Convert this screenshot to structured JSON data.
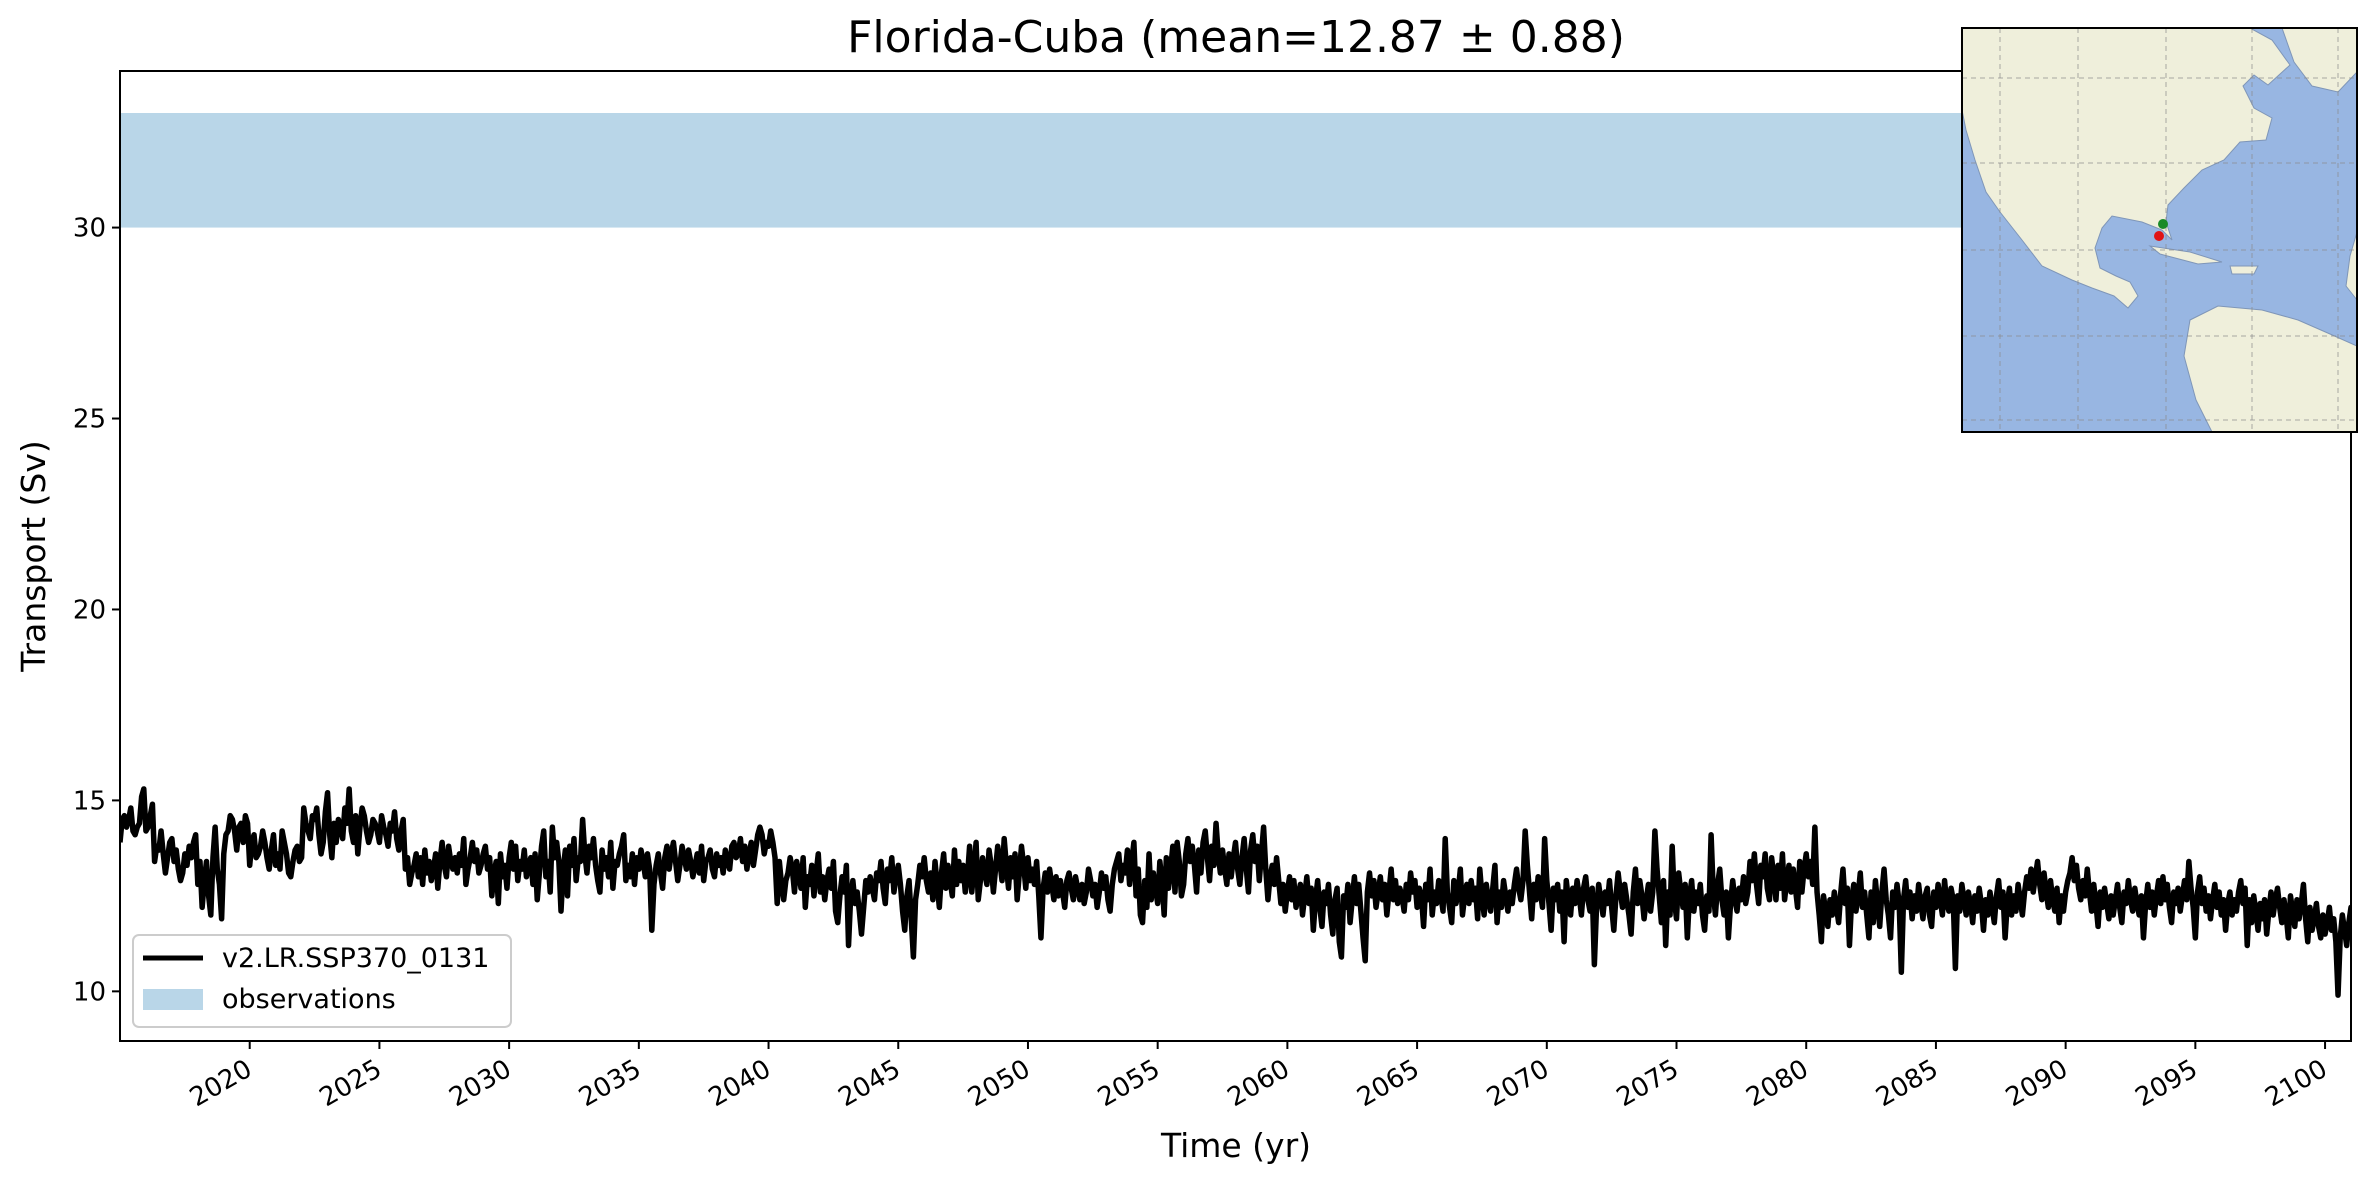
{
  "chart_data": {
    "type": "line",
    "title": "Florida-Cuba (mean=12.87 ± 0.88)",
    "xlabel": "Time (yr)",
    "ylabel": "Transport (Sv)",
    "xlim": [
      2015.0,
      2101.0
    ],
    "ylim": [
      8.7,
      34.1
    ],
    "x_ticks": [
      2020,
      2025,
      2030,
      2035,
      2040,
      2045,
      2050,
      2055,
      2060,
      2065,
      2070,
      2075,
      2080,
      2085,
      2090,
      2095,
      2100
    ],
    "y_ticks": [
      10,
      15,
      20,
      25,
      30
    ],
    "grid": false,
    "legend_position": "lower-left",
    "observations_band": {
      "name": "observations",
      "ymin": 30.0,
      "ymax": 33.0,
      "color": "#b9d6e8"
    },
    "series": [
      {
        "name": "v2.LR.SSP370_0131",
        "color": "#000000",
        "x_start": 2015.0,
        "x_step": 0.0833333,
        "values": [
          13.9,
          14.5,
          14.6,
          14.3,
          14.5,
          14.8,
          14.2,
          14.1,
          14.3,
          14.4,
          15.1,
          15.3,
          14.2,
          14.3,
          14.6,
          14.9,
          13.4,
          13.8,
          13.7,
          14.2,
          13.6,
          13.1,
          13.5,
          13.9,
          14.0,
          13.4,
          13.7,
          13.2,
          12.9,
          13.1,
          13.6,
          13.3,
          13.8,
          13.5,
          13.9,
          14.1,
          12.8,
          13.4,
          12.2,
          12.9,
          13.4,
          12.5,
          12.0,
          13.5,
          14.3,
          13.2,
          12.8,
          11.9,
          13.6,
          14.1,
          14.2,
          14.6,
          14.5,
          14.2,
          13.7,
          14.3,
          14.4,
          13.9,
          14.6,
          14.4,
          13.3,
          13.9,
          14.1,
          13.5,
          13.6,
          13.8,
          14.2,
          13.9,
          13.5,
          13.2,
          13.7,
          14.1,
          13.3,
          13.6,
          13.2,
          14.2,
          13.9,
          13.6,
          13.1,
          13.0,
          13.4,
          13.7,
          13.8,
          13.4,
          13.5,
          14.8,
          14.4,
          14.2,
          14.0,
          14.6,
          14.5,
          14.8,
          14.1,
          13.6,
          13.9,
          14.7,
          15.2,
          14.1,
          13.5,
          14.4,
          13.9,
          14.5,
          14.3,
          14.0,
          14.8,
          14.4,
          15.3,
          14.2,
          13.9,
          14.6,
          13.6,
          14.3,
          14.8,
          14.6,
          14.2,
          13.9,
          14.1,
          14.5,
          14.4,
          14.2,
          13.9,
          14.6,
          14.3,
          14.1,
          13.8,
          14.4,
          14.2,
          14.7,
          14.0,
          13.7,
          14.2,
          14.5,
          13.2,
          13.5,
          12.8,
          13.1,
          13.3,
          13.6,
          13.0,
          13.5,
          12.8,
          13.7,
          13.1,
          13.4,
          12.9,
          13.2,
          13.6,
          12.7,
          13.4,
          13.9,
          13.3,
          13.0,
          13.8,
          13.4,
          13.2,
          13.5,
          13.1,
          13.6,
          13.3,
          14.0,
          12.8,
          13.2,
          13.5,
          13.9,
          13.4,
          13.7,
          13.1,
          13.3,
          13.6,
          13.8,
          13.2,
          13.5,
          12.5,
          13.1,
          13.4,
          12.3,
          13.6,
          13.0,
          13.3,
          12.7,
          13.5,
          13.9,
          13.2,
          13.8,
          12.9,
          13.4,
          13.2,
          13.7,
          13.0,
          13.3,
          13.5,
          12.8,
          13.6,
          12.4,
          13.1,
          13.8,
          14.2,
          13.0,
          13.4,
          12.6,
          14.3,
          13.5,
          13.9,
          13.4,
          12.1,
          13.2,
          13.7,
          12.5,
          13.8,
          13.3,
          14.0,
          12.9,
          13.5,
          13.4,
          14.5,
          13.6,
          13.1,
          13.8,
          13.5,
          14.0,
          13.3,
          12.9,
          12.6,
          13.7,
          13.2,
          13.5,
          13.0,
          13.9,
          12.7,
          13.4,
          13.3,
          13.6,
          13.8,
          14.1,
          12.9,
          13.3,
          13.0,
          13.6,
          12.8,
          13.5,
          13.2,
          13.7,
          13.4,
          13.0,
          13.6,
          13.2,
          11.6,
          12.8,
          13.3,
          13.6,
          13.1,
          12.7,
          13.5,
          13.8,
          13.2,
          13.6,
          13.9,
          13.4,
          12.9,
          13.3,
          13.8,
          13.5,
          13.2,
          13.7,
          13.4,
          13.0,
          13.3,
          13.6,
          13.1,
          13.8,
          12.9,
          13.4,
          13.5,
          13.7,
          13.2,
          13.0,
          13.6,
          13.3,
          13.5,
          13.1,
          13.7,
          13.4,
          13.2,
          13.8,
          13.9,
          13.5,
          13.6,
          14.0,
          13.4,
          13.8,
          13.2,
          13.6,
          13.9,
          13.3,
          13.7,
          14.1,
          14.3,
          14.1,
          13.6,
          13.9,
          13.8,
          14.2,
          13.9,
          13.5,
          12.3,
          13.4,
          12.8,
          12.4,
          12.9,
          13.1,
          13.5,
          13.2,
          12.6,
          13.4,
          13.1,
          12.7,
          13.5,
          12.2,
          13.0,
          12.8,
          13.3,
          12.5,
          13.1,
          13.6,
          12.6,
          13.0,
          12.4,
          12.9,
          13.2,
          12.7,
          13.4,
          12.1,
          11.8,
          12.5,
          13.0,
          12.6,
          13.3,
          11.2,
          12.5,
          12.9,
          12.3,
          12.6,
          12.1,
          11.5,
          12.2,
          12.9,
          12.6,
          13.0,
          12.7,
          12.4,
          13.1,
          12.9,
          13.4,
          12.7,
          12.3,
          13.2,
          12.9,
          13.5,
          12.6,
          13.0,
          13.3,
          12.8,
          12.1,
          11.6,
          12.5,
          12.9,
          11.9,
          10.9,
          12.4,
          12.8,
          13.3,
          13.0,
          13.5,
          12.9,
          12.6,
          13.1,
          12.4,
          13.4,
          12.8,
          12.2,
          13.1,
          13.6,
          12.7,
          13.3,
          12.9,
          12.5,
          13.7,
          12.8,
          13.4,
          12.9,
          13.3,
          12.6,
          13.0,
          13.8,
          12.6,
          13.2,
          13.9,
          12.4,
          12.9,
          13.5,
          13.1,
          12.8,
          13.7,
          13.3,
          12.6,
          13.2,
          13.8,
          13.4,
          12.9,
          14.0,
          13.3,
          12.7,
          13.5,
          13.0,
          13.6,
          12.4,
          13.1,
          13.8,
          13.3,
          12.7,
          13.5,
          12.9,
          13.2,
          12.8,
          13.4,
          12.5,
          11.4,
          12.7,
          13.1,
          12.6,
          13.2,
          12.8,
          12.4,
          13.0,
          12.5,
          12.9,
          12.6,
          12.2,
          12.9,
          13.1,
          12.7,
          12.4,
          13.0,
          12.7,
          12.4,
          12.8,
          12.3,
          12.6,
          13.2,
          12.9,
          12.5,
          12.8,
          12.2,
          12.6,
          13.1,
          12.7,
          13.0,
          12.4,
          12.1,
          12.8,
          13.2,
          13.4,
          13.6,
          12.9,
          13.3,
          13.1,
          13.7,
          12.8,
          13.4,
          13.9,
          12.5,
          13.2,
          12.0,
          11.8,
          12.9,
          12.2,
          13.6,
          12.4,
          13.1,
          12.7,
          12.3,
          13.4,
          12.9,
          12.0,
          13.5,
          12.7,
          13.2,
          13.8,
          12.6,
          13.9,
          13.4,
          12.5,
          12.8,
          13.6,
          14.0,
          13.4,
          13.8,
          13.3,
          12.6,
          13.7,
          13.1,
          13.9,
          14.2,
          13.5,
          12.9,
          13.8,
          13.3,
          14.4,
          13.6,
          13.1,
          13.7,
          13.2,
          12.8,
          13.6,
          13.0,
          13.5,
          13.9,
          13.2,
          12.8,
          13.5,
          14.0,
          13.2,
          12.6,
          13.7,
          14.1,
          13.4,
          13.8,
          12.9,
          13.6,
          14.3,
          13.2,
          12.4,
          13.0,
          13.3,
          12.8,
          13.5,
          12.9,
          12.3,
          12.8,
          12.1,
          12.6,
          13.0,
          12.4,
          12.9,
          12.2,
          12.5,
          12.8,
          12.0,
          12.5,
          13.0,
          12.3,
          12.7,
          11.6,
          12.4,
          12.9,
          12.2,
          11.7,
          12.6,
          12.3,
          12.8,
          12.0,
          11.5,
          12.4,
          12.7,
          11.3,
          10.9,
          12.5,
          12.2,
          12.8,
          11.8,
          12.4,
          13.0,
          12.3,
          12.8,
          12.1,
          11.4,
          10.8,
          12.6,
          13.1,
          12.5,
          12.9,
          12.2,
          12.6,
          13.0,
          12.4,
          12.8,
          12.0,
          12.6,
          13.2,
          12.4,
          12.9,
          12.3,
          12.7,
          12.5,
          12.1,
          12.8,
          12.4,
          13.1,
          12.6,
          12.9,
          12.2,
          12.7,
          12.5,
          11.7,
          12.8,
          12.4,
          13.2,
          12.0,
          12.6,
          12.3,
          12.9,
          12.5,
          12.1,
          14.0,
          12.6,
          12.2,
          11.8,
          12.9,
          12.3,
          12.6,
          13.2,
          12.0,
          12.5,
          12.8,
          12.3,
          12.9,
          12.4,
          12.7,
          11.9,
          13.2,
          12.5,
          12.0,
          12.8,
          12.4,
          12.1,
          12.7,
          13.3,
          11.8,
          12.6,
          12.2,
          12.9,
          12.5,
          12.1,
          12.6,
          12.3,
          12.8,
          13.2,
          12.7,
          12.4,
          12.9,
          14.2,
          13.3,
          12.6,
          11.9,
          12.8,
          12.4,
          13.0,
          12.6,
          12.2,
          14.0,
          12.9,
          12.3,
          11.6,
          12.7,
          12.4,
          12.8,
          12.1,
          12.6,
          11.3,
          12.9,
          12.4,
          12.0,
          12.7,
          12.3,
          12.9,
          12.5,
          12.0,
          12.7,
          13.0,
          12.4,
          12.1,
          12.7,
          10.7,
          12.2,
          12.8,
          12.4,
          12.0,
          12.6,
          12.3,
          12.9,
          12.2,
          11.6,
          12.5,
          13.1,
          12.6,
          12.2,
          12.8,
          12.4,
          12.0,
          11.5,
          12.6,
          13.2,
          12.3,
          12.9,
          12.5,
          11.9,
          12.4,
          12.8,
          12.1,
          12.6,
          14.2,
          13.2,
          12.5,
          11.8,
          12.9,
          11.2,
          12.6,
          12.0,
          13.8,
          12.4,
          11.9,
          13.1,
          12.6,
          12.2,
          12.8,
          11.4,
          12.5,
          12.9,
          12.1,
          12.6,
          12.3,
          12.8,
          12.0,
          11.6,
          12.5,
          12.1,
          14.1,
          12.6,
          12.0,
          12.8,
          13.2,
          12.4,
          12.0,
          12.6,
          11.4,
          12.3,
          12.9,
          12.4,
          12.1,
          12.7,
          12.4,
          13.0,
          12.3,
          12.6,
          13.4,
          12.9,
          13.6,
          12.8,
          12.3,
          13.3,
          13.0,
          13.6,
          12.7,
          12.4,
          13.5,
          13.0,
          12.4,
          13.3,
          12.7,
          13.6,
          12.4,
          12.9,
          13.3,
          12.6,
          13.2,
          12.7,
          12.2,
          13.4,
          12.6,
          13.2,
          13.6,
          13.0,
          13.4,
          12.8,
          14.3,
          12.6,
          12.0,
          11.3,
          12.5,
          12.1,
          11.7,
          12.4,
          12.0,
          12.6,
          12.2,
          11.8,
          12.6,
          13.2,
          12.3,
          12.7,
          11.2,
          12.4,
          12.8,
          12.1,
          12.5,
          13.1,
          12.2,
          12.6,
          12.0,
          11.4,
          12.6,
          11.8,
          12.9,
          12.3,
          11.7,
          12.6,
          13.2,
          12.4,
          12.0,
          11.4,
          12.6,
          12.2,
          12.8,
          12.3,
          10.5,
          12.4,
          12.9,
          12.2,
          12.6,
          11.9,
          12.5,
          12.1,
          12.8,
          12.3,
          11.9,
          12.5,
          12.7,
          12.0,
          11.7,
          12.6,
          12.2,
          12.8,
          12.4,
          12.0,
          12.9,
          12.3,
          12.1,
          12.7,
          12.4,
          10.6,
          12.5,
          12.1,
          12.8,
          12.4,
          12.0,
          12.6,
          12.3,
          11.8,
          12.5,
          12.1,
          12.7,
          12.3,
          11.6,
          12.4,
          12.0,
          12.6,
          12.2,
          11.8,
          12.5,
          12.9,
          12.2,
          12.6,
          11.4,
          12.3,
          12.7,
          12.0,
          12.5,
          12.1,
          12.8,
          12.4,
          12.0,
          12.6,
          13.0,
          12.7,
          13.2,
          12.6,
          13.0,
          13.4,
          12.8,
          12.4,
          13.1,
          12.6,
          12.2,
          12.9,
          12.4,
          12.1,
          12.7,
          11.8,
          12.5,
          12.1,
          12.6,
          12.9,
          13.1,
          13.5,
          12.9,
          13.3,
          12.7,
          12.4,
          12.9,
          12.5,
          13.2,
          12.6,
          12.1,
          12.8,
          12.3,
          11.7,
          12.6,
          12.2,
          12.7,
          12.3,
          11.9,
          12.5,
          12.0,
          12.4,
          12.8,
          12.2,
          11.8,
          12.6,
          12.3,
          12.9,
          12.4,
          12.1,
          12.7,
          12.3,
          12.0,
          12.5,
          11.4,
          12.3,
          12.8,
          12.2,
          12.6,
          12.0,
          12.5,
          12.9,
          12.3,
          13.0,
          12.4,
          12.8,
          12.2,
          11.8,
          12.6,
          12.3,
          12.7,
          12.1,
          12.5,
          12.9,
          12.4,
          13.4,
          12.7,
          12.2,
          11.4,
          12.6,
          13.0,
          12.3,
          12.7,
          12.1,
          12.5,
          11.9,
          12.4,
          12.8,
          12.2,
          12.6,
          12.0,
          12.4,
          11.6,
          12.3,
          12.6,
          12.0,
          12.4,
          12.1,
          12.6,
          12.9,
          12.3,
          12.7,
          11.2,
          12.4,
          11.8,
          12.5,
          12.1,
          11.6,
          12.3,
          11.9,
          12.4,
          11.5,
          12.1,
          12.6,
          12.0,
          12.4,
          12.7,
          12.2,
          11.8,
          12.4,
          12.0,
          11.4,
          12.5,
          12.1,
          11.7,
          12.4,
          11.9,
          12.3,
          12.8,
          11.9,
          11.3,
          12.2,
          11.6,
          11.9,
          12.3,
          11.7,
          11.4,
          12.0,
          11.5,
          11.8,
          12.2,
          11.6,
          11.9,
          11.3,
          9.9,
          11.4,
          12.0,
          11.6,
          11.2,
          11.8,
          12.2,
          11.6,
          11.9,
          11.5,
          11.1,
          11.7,
          12.1,
          11.4,
          11.8,
          12.4,
          11.6,
          12.0,
          11.3,
          11.7,
          12.3,
          11.9,
          12.6,
          12.0,
          11.5,
          12.1,
          12.9,
          13.4,
          12.3,
          11.8,
          12.6,
          12.2,
          11.6,
          10.6,
          12.1,
          12.5,
          12.1,
          11.8,
          12.4,
          12.0,
          12.6,
          12.2
        ]
      }
    ]
  },
  "legend": {
    "items": [
      {
        "label": "v2.LR.SSP370_0131",
        "kind": "line",
        "color": "#000000"
      },
      {
        "label": "observations",
        "kind": "patch",
        "color": "#b9d6e8"
      }
    ]
  },
  "inset_map": {
    "ocean_color": "#98b6e2",
    "land_color": "#efefdb",
    "markers": [
      {
        "name": "start",
        "color": "#1a8a28"
      },
      {
        "name": "end",
        "color": "#e01414"
      }
    ]
  }
}
